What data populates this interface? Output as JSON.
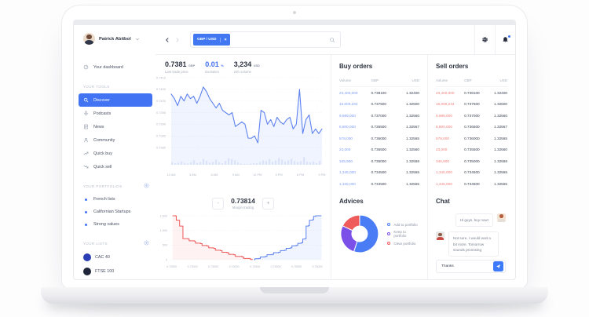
{
  "colors": {
    "accent": "#3e6df0",
    "buy_volume": "#7d9cf6",
    "sell_volume": "#f0807d",
    "text_dark": "#2f3542",
    "text_muted": "#aab0bd",
    "border": "#eef0f4"
  },
  "sidebar": {
    "user": {
      "name": "Patrick Abitbol"
    },
    "dashboard": {
      "label": "Your dashboard",
      "icon": "gauge"
    },
    "tools_label": "YOUR TOOLS",
    "tools": [
      {
        "label": "Discover",
        "icon": "search",
        "state": "active"
      },
      {
        "label": "Podcasts",
        "icon": "podcast"
      },
      {
        "label": "News",
        "icon": "news"
      },
      {
        "label": "Community",
        "icon": "community"
      },
      {
        "label": "Quick buy",
        "icon": "trend-up"
      },
      {
        "label": "Quick sell",
        "icon": "trend-down"
      }
    ],
    "portfolios_label": "YOUR PORTFOLIOS",
    "portfolios": [
      {
        "label": "French lists"
      },
      {
        "label": "Californian Startups"
      },
      {
        "label": "Strong values"
      }
    ],
    "lists_label": "YOUR LISTS",
    "lists": [
      {
        "label": "CAC 40",
        "color": "#2b3eb5"
      },
      {
        "label": "FTSE 100",
        "color": "#20263a"
      }
    ]
  },
  "topbar": {
    "pair_tag": "GBP / USD",
    "tag_close": "×"
  },
  "stats": [
    {
      "value": "0.7381",
      "unit": "GBP",
      "label": "Last trade price"
    },
    {
      "value": "0.01",
      "unit": "%",
      "label": "Evolution",
      "tone": "accent"
    },
    {
      "value": "3,234",
      "unit": "USD",
      "label": "24h volume"
    }
  ],
  "orders": {
    "columns": [
      "Volume",
      "GBP",
      "USD"
    ],
    "buy": {
      "title": "Buy orders",
      "rows": [
        {
          "volume": "23,400,000",
          "gbp": "0.738100",
          "usd": "1.32400"
        },
        {
          "volume": "10,000,234",
          "gbp": "0.737500",
          "usd": "1.32500"
        },
        {
          "volume": "9,989,000",
          "gbp": "0.737000",
          "usd": "1.32560"
        },
        {
          "volume": "8,800,000",
          "gbp": "0.736500",
          "usd": "1.32567"
        },
        {
          "volume": "578,000",
          "gbp": "0.736000",
          "usd": "1.32565"
        },
        {
          "volume": "23,000",
          "gbp": "0.735500",
          "usd": "1.32560"
        },
        {
          "volume": "345,900",
          "gbp": "0.735000",
          "usd": "1.32558"
        },
        {
          "volume": "1,345,000",
          "gbp": "0.734500",
          "usd": "1.32565"
        },
        {
          "volume": "1,345,000",
          "gbp": "0.734500",
          "usd": "1.32565"
        }
      ]
    },
    "sell": {
      "title": "Sell orders",
      "rows": [
        {
          "volume": "23,400,000",
          "gbp": "0.738100",
          "usd": "1.32400"
        },
        {
          "volume": "10,000,234",
          "gbp": "0.737500",
          "usd": "1.32500"
        },
        {
          "volume": "9,989,000",
          "gbp": "0.737000",
          "usd": "1.32560"
        },
        {
          "volume": "8,800,000",
          "gbp": "0.736500",
          "usd": "1.32567"
        },
        {
          "volume": "578,000",
          "gbp": "0.736000",
          "usd": "1.32565"
        },
        {
          "volume": "23,000",
          "gbp": "0.735500",
          "usd": "1.32560"
        },
        {
          "volume": "345,900",
          "gbp": "0.735000",
          "usd": "1.32558"
        },
        {
          "volume": "1,345,000",
          "gbp": "0.734500",
          "usd": "1.32565"
        },
        {
          "volume": "1,345,000",
          "gbp": "0.734500",
          "usd": "1.32565"
        }
      ]
    }
  },
  "margin": {
    "minus": "-",
    "value": "0.73814",
    "label": "Margin trading",
    "plus": "+"
  },
  "advices": {
    "title": "Advices"
  },
  "chat": {
    "title": "Chat",
    "messages": [
      {
        "text": "Hi guys, buy now!",
        "side": "right",
        "avatar": "woman"
      },
      {
        "text": "Not sure, I would wait a bit more. Tomorrow sounds promising",
        "side": "left",
        "avatar": "man"
      }
    ],
    "input_value": "Thanks"
  },
  "chart_data": {
    "price_chart": {
      "type": "line",
      "x_ticks": [
        "12 AM",
        "3 AM",
        "6 AM",
        "9 AM",
        "12 PM",
        "3 PM",
        "6 PM",
        "9 PM"
      ],
      "y_ticks": [
        "0.7410",
        "0.7405",
        "0.7400",
        "0.7395",
        "0.7390",
        "0.7385",
        "0.7380"
      ],
      "ylim": [
        0.738,
        0.741
      ],
      "grid": "dotted",
      "line_color": "#5d82f0",
      "fill_color": "rgba(93,130,240,0.09)",
      "values": [
        0.7403,
        0.7401,
        0.7398,
        0.7402,
        0.74,
        0.7403,
        0.7401,
        0.7402,
        0.7399,
        0.7402,
        0.7406,
        0.7404,
        0.7401,
        0.7399,
        0.7397,
        0.7399,
        0.7396,
        0.7395,
        0.7394,
        0.7395,
        0.7389,
        0.739,
        0.7391,
        0.739,
        0.7384,
        0.7384,
        0.7385,
        0.7382,
        0.7396,
        0.7395,
        0.739,
        0.7392,
        0.7389,
        0.7393,
        0.7391,
        0.739,
        0.7392,
        0.7393,
        0.7388,
        0.739,
        0.7405,
        0.7386,
        0.7392,
        0.7394,
        0.7386,
        0.7388,
        0.7386,
        0.7388
      ],
      "volume_color": "#dbe3f8",
      "volume": [
        18,
        10,
        14,
        22,
        12,
        8,
        16,
        30,
        12,
        18,
        40,
        26,
        14,
        20,
        34,
        18,
        10,
        26,
        44,
        38,
        30,
        16,
        8,
        6,
        5,
        8,
        12,
        10,
        18,
        30,
        24,
        38,
        20,
        28,
        46,
        34,
        22,
        30,
        40,
        26,
        18,
        24,
        52,
        20,
        16,
        22,
        12,
        26
      ]
    },
    "depth_chart": {
      "type": "step-area",
      "x_ticks": [
        "0.72500",
        "0.73000",
        "0.73500",
        "0.74000",
        "0.74500",
        "0.75000",
        "0.75500",
        "0.76000"
      ],
      "y_ticks": [
        "1,500",
        "1,000",
        "500",
        "0"
      ],
      "xlim": [
        0.7245,
        0.7615
      ],
      "ylim": [
        0,
        1500
      ],
      "bid_color": "#ee5a5a",
      "ask_color": "#5d82f0",
      "bids": [
        [
          0.7252,
          1500
        ],
        [
          0.726,
          1490
        ],
        [
          0.7261,
          1350
        ],
        [
          0.7268,
          1345
        ],
        [
          0.7269,
          1150
        ],
        [
          0.7276,
          1145
        ],
        [
          0.7277,
          720
        ],
        [
          0.729,
          705
        ],
        [
          0.7292,
          645
        ],
        [
          0.7304,
          635
        ],
        [
          0.7307,
          565
        ],
        [
          0.7319,
          550
        ],
        [
          0.7323,
          487
        ],
        [
          0.7335,
          470
        ],
        [
          0.7339,
          405
        ],
        [
          0.7351,
          390
        ],
        [
          0.7355,
          325
        ],
        [
          0.7367,
          310
        ],
        [
          0.7371,
          255
        ],
        [
          0.7383,
          240
        ],
        [
          0.7387,
          185
        ],
        [
          0.7399,
          170
        ],
        [
          0.7403,
          115
        ],
        [
          0.7419,
          95
        ],
        [
          0.7423,
          45
        ],
        [
          0.7438,
          35
        ],
        [
          0.744,
          5
        ],
        [
          0.7444,
          0
        ]
      ],
      "asks": [
        [
          0.7448,
          0
        ],
        [
          0.745,
          35
        ],
        [
          0.746,
          45
        ],
        [
          0.7463,
          95
        ],
        [
          0.7475,
          115
        ],
        [
          0.7479,
          170
        ],
        [
          0.7491,
          185
        ],
        [
          0.7495,
          240
        ],
        [
          0.7507,
          255
        ],
        [
          0.7511,
          310
        ],
        [
          0.7521,
          325
        ],
        [
          0.7525,
          390
        ],
        [
          0.7535,
          405
        ],
        [
          0.7539,
          475
        ],
        [
          0.7549,
          490
        ],
        [
          0.7553,
          560
        ],
        [
          0.7561,
          580
        ],
        [
          0.7565,
          705
        ],
        [
          0.7571,
          720
        ],
        [
          0.7573,
          1150
        ],
        [
          0.7579,
          1170
        ],
        [
          0.7581,
          1350
        ],
        [
          0.7589,
          1370
        ],
        [
          0.7591,
          1480
        ],
        [
          0.7596,
          1500
        ],
        [
          0.761,
          1500
        ]
      ]
    },
    "advice_donut": {
      "type": "pie",
      "legend_position": "right",
      "slices": [
        {
          "label": "Add to portfolio",
          "value": 55,
          "color": "#4a7df5"
        },
        {
          "label": "Keep to portfolio",
          "value": 27,
          "color": "#7b50e8"
        },
        {
          "label": "Clear portfolio",
          "value": 18,
          "color": "#ef5a5a"
        }
      ]
    }
  }
}
